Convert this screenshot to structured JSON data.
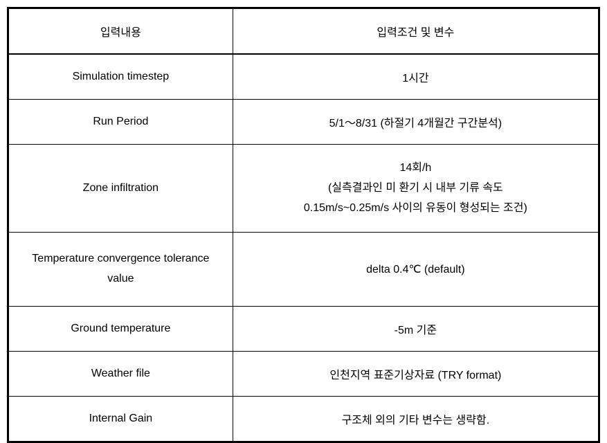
{
  "table": {
    "header": {
      "col1": "입력내용",
      "col2": "입력조건 및 변수"
    },
    "rows": [
      {
        "label": "Simulation timestep",
        "value": "1시간"
      },
      {
        "label": "Run Period",
        "value": "5/1～8/31 (하절기 4개월간 구간분석)"
      },
      {
        "label": "Zone infiltration",
        "value_line1": "14회/h",
        "value_line2": "(실측결과인 미 환기 시 내부 기류 속도",
        "value_line3": "0.15m/s~0.25m/s 사이의 유동이 형성되는 조건)"
      },
      {
        "label_line1": "Temperature convergence tolerance",
        "label_line2": "value",
        "value": "delta 0.4℃ (default)"
      },
      {
        "label": "Ground temperature",
        "value": "-5m 기준"
      },
      {
        "label": "Weather file",
        "value": "인천지역 표준기상자료 (TRY format)"
      },
      {
        "label": "Internal Gain",
        "value": "구조체 외의 기타 변수는 생략함."
      }
    ],
    "styling": {
      "outer_border_color": "#000000",
      "outer_border_width": 2,
      "inner_border_color": "#000000",
      "inner_border_width": 1,
      "background_color": "#ffffff",
      "text_color": "#000000",
      "font_size": 16,
      "col_left_width_pct": 38,
      "col_right_width_pct": 62,
      "header_bottom_border_width": 2
    }
  }
}
